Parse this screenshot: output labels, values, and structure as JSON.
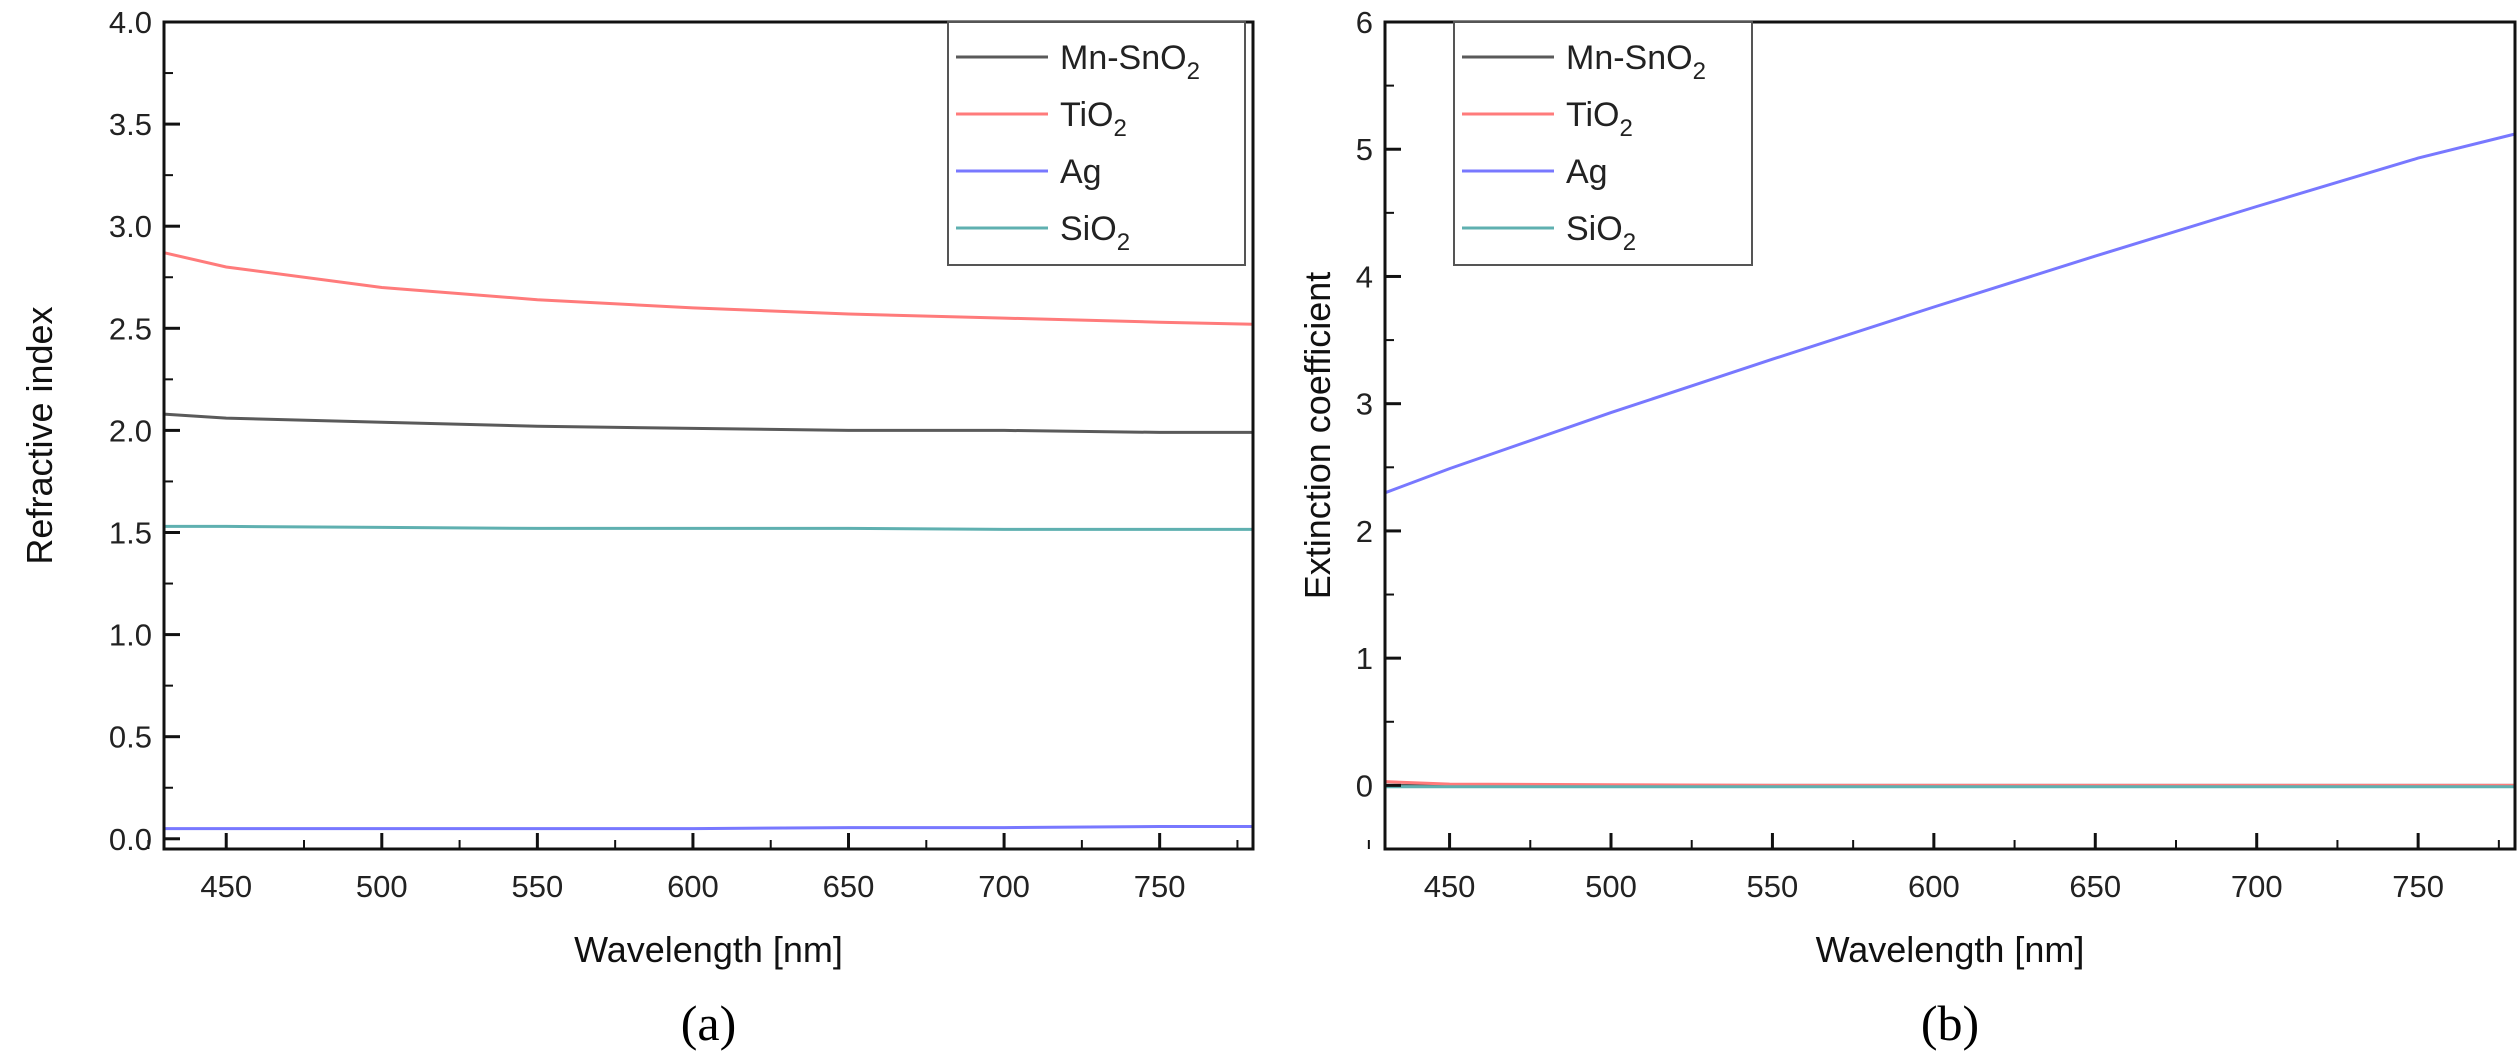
{
  "chart_data": [
    {
      "type": "line",
      "panel": "(a)",
      "xlabel": "Wavelength [nm]",
      "ylabel": "Refractive index",
      "xlim": [
        430,
        780
      ],
      "ylim": [
        -0.05,
        4.0
      ],
      "xticks": [
        450,
        500,
        550,
        600,
        650,
        700,
        750
      ],
      "yticks": [
        "0.0",
        "0.5",
        "1.0",
        "1.5",
        "2.0",
        "2.5",
        "3.0",
        "3.5",
        "4.0"
      ],
      "legend_position": "top-right",
      "x": [
        430,
        450,
        500,
        550,
        600,
        650,
        700,
        750,
        780
      ],
      "series": [
        {
          "name": "Mn-SnO",
          "sub": "2",
          "color": "#5a5a5a",
          "values": [
            2.08,
            2.06,
            2.04,
            2.02,
            2.01,
            2.0,
            2.0,
            1.99,
            1.99
          ]
        },
        {
          "name": "TiO",
          "sub": "2",
          "color": "#ff7b7b",
          "values": [
            2.87,
            2.8,
            2.7,
            2.64,
            2.6,
            2.57,
            2.55,
            2.53,
            2.52
          ]
        },
        {
          "name": "Ag",
          "sub": "",
          "color": "#7878ff",
          "values": [
            0.05,
            0.05,
            0.05,
            0.05,
            0.05,
            0.055,
            0.055,
            0.06,
            0.06
          ]
        },
        {
          "name": "SiO",
          "sub": "2",
          "color": "#5fb0b0",
          "values": [
            1.53,
            1.53,
            1.525,
            1.52,
            1.52,
            1.52,
            1.515,
            1.515,
            1.515
          ]
        }
      ]
    },
    {
      "type": "line",
      "panel": "(b)",
      "xlabel": "Wavelength [nm]",
      "ylabel": "Extinction coefficient",
      "xlim": [
        430,
        780
      ],
      "ylim": [
        -0.5,
        6
      ],
      "xticks": [
        450,
        500,
        550,
        600,
        650,
        700,
        750
      ],
      "yticks": [
        "0",
        "1",
        "2",
        "3",
        "4",
        "5",
        "6"
      ],
      "legend_position": "top-left",
      "x": [
        430,
        450,
        500,
        550,
        600,
        650,
        700,
        750,
        780
      ],
      "series": [
        {
          "name": "Mn-SnO",
          "sub": "2",
          "color": "#5a5a5a",
          "values": [
            0.0,
            0.0,
            0.0,
            0.0,
            0.0,
            0.0,
            0.0,
            0.0,
            0.0
          ]
        },
        {
          "name": "TiO",
          "sub": "2",
          "color": "#ff7b7b",
          "values": [
            0.03,
            0.01,
            0.005,
            0.0,
            0.0,
            0.0,
            0.0,
            0.0,
            0.0
          ]
        },
        {
          "name": "Ag",
          "sub": "",
          "color": "#7878ff",
          "values": [
            2.3,
            2.49,
            2.93,
            3.35,
            3.76,
            4.16,
            4.55,
            4.93,
            5.12
          ]
        },
        {
          "name": "SiO",
          "sub": "2",
          "color": "#5fb0b0",
          "values": [
            -0.01,
            -0.01,
            -0.01,
            -0.01,
            -0.01,
            -0.01,
            -0.01,
            -0.01,
            -0.01
          ]
        }
      ]
    }
  ]
}
